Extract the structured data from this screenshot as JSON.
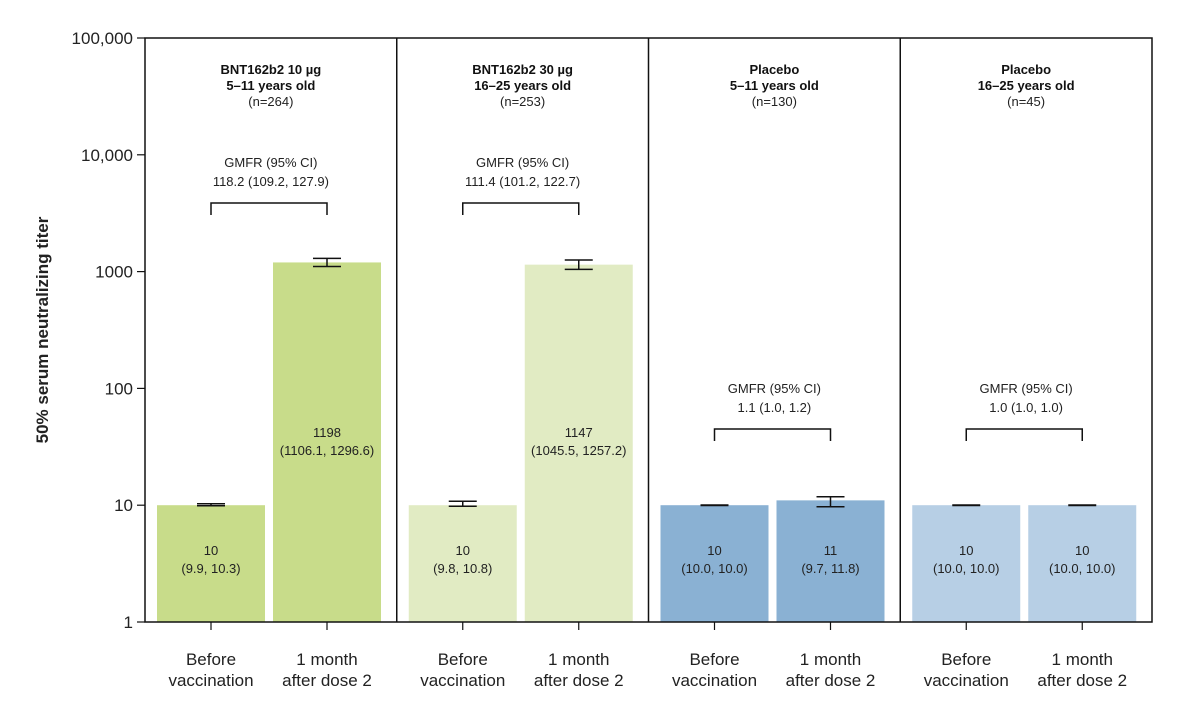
{
  "chart_data": {
    "type": "bar",
    "ylabel": "50% serum neutralizing titer",
    "yscale": "log",
    "ylim": [
      1,
      100000
    ],
    "ytick_labels": [
      "1",
      "10",
      "100",
      "1000",
      "10,000",
      "100,000"
    ],
    "ytick_values": [
      1,
      10,
      100,
      1000,
      10000,
      100000
    ],
    "categories": [
      "Before vaccination",
      "1 month after dose 2"
    ],
    "category_lines": [
      [
        "Before",
        "vaccination"
      ],
      [
        "1 month",
        "after dose 2"
      ]
    ],
    "panels": [
      {
        "title_line1": "BNT162b2 10 µg",
        "title_line2": "5–11 years old",
        "n": "(n=264)",
        "color": "#c8dc8a",
        "gmfr_label": "GMFR (95% CI)",
        "gmfr_value": "118.2 (109.2, 127.9)",
        "bars": [
          {
            "value": 10,
            "ci": [
              9.9,
              10.3
            ],
            "label": "10",
            "ci_label": "(9.9, 10.3)"
          },
          {
            "value": 1198,
            "ci": [
              1106.1,
              1296.6
            ],
            "label": "1198",
            "ci_label": "(1106.1, 1296.6)"
          }
        ]
      },
      {
        "title_line1": "BNT162b2 30 µg",
        "title_line2": "16–25 years old",
        "n": "(n=253)",
        "color": "#e1ebc3",
        "gmfr_label": "GMFR (95% CI)",
        "gmfr_value": "111.4 (101.2, 122.7)",
        "bars": [
          {
            "value": 10,
            "ci": [
              9.8,
              10.8
            ],
            "label": "10",
            "ci_label": "(9.8, 10.8)"
          },
          {
            "value": 1147,
            "ci": [
              1045.5,
              1257.2
            ],
            "label": "1147",
            "ci_label": "(1045.5, 1257.2)"
          }
        ]
      },
      {
        "title_line1": "Placebo",
        "title_line2": "5–11 years old",
        "n": "(n=130)",
        "color": "#8ab1d3",
        "gmfr_label": "GMFR (95% CI)",
        "gmfr_value": "1.1 (1.0, 1.2)",
        "bars": [
          {
            "value": 10,
            "ci": [
              10.0,
              10.0
            ],
            "label": "10",
            "ci_label": "(10.0, 10.0)"
          },
          {
            "value": 11,
            "ci": [
              9.7,
              11.8
            ],
            "label": "11",
            "ci_label": "(9.7, 11.8)"
          }
        ]
      },
      {
        "title_line1": "Placebo",
        "title_line2": "16–25 years old",
        "n": "(n=45)",
        "color": "#b7cfe5",
        "gmfr_label": "GMFR (95% CI)",
        "gmfr_value": "1.0 (1.0, 1.0)",
        "bars": [
          {
            "value": 10,
            "ci": [
              10.0,
              10.0
            ],
            "label": "10",
            "ci_label": "(10.0, 10.0)"
          },
          {
            "value": 10,
            "ci": [
              10.0,
              10.0
            ],
            "label": "10",
            "ci_label": "(10.0, 10.0)"
          }
        ]
      }
    ]
  }
}
